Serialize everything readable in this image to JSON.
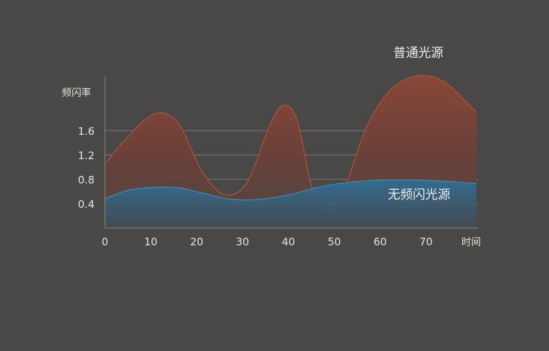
{
  "chart_data": {
    "type": "area",
    "title": "",
    "xlabel": "时间",
    "ylabel": "频闪率",
    "xlim": [
      0,
      81
    ],
    "ylim": [
      0,
      2.4
    ],
    "x_ticks": [
      0,
      10,
      20,
      30,
      40,
      50,
      60,
      70
    ],
    "y_ticks": [
      0.4,
      0.8,
      1.2,
      1.6
    ],
    "y_tick_labels": [
      "0.4",
      "0.8",
      "1.2",
      "1.6"
    ],
    "grid": {
      "horizontal": true,
      "vertical": false
    },
    "series": [
      {
        "name": "普通光源",
        "color": "#b5503c",
        "x": [
          0,
          5,
          11,
          16,
          21,
          26,
          31,
          36,
          39,
          42,
          45,
          48,
          50,
          53,
          57,
          62,
          68,
          74,
          81
        ],
        "values": [
          1.05,
          1.5,
          1.88,
          1.72,
          0.95,
          0.55,
          0.75,
          1.7,
          2.02,
          1.75,
          0.7,
          0.33,
          0.33,
          0.8,
          1.65,
          2.25,
          2.5,
          2.4,
          1.9
        ]
      },
      {
        "name": "无频闪光源",
        "color": "#2f8fc9",
        "x": [
          0,
          5,
          11,
          16,
          21,
          26,
          31,
          36,
          41,
          46,
          51,
          56,
          61,
          66,
          71,
          76,
          81
        ],
        "values": [
          0.48,
          0.62,
          0.67,
          0.66,
          0.58,
          0.49,
          0.46,
          0.49,
          0.56,
          0.66,
          0.73,
          0.77,
          0.79,
          0.79,
          0.78,
          0.76,
          0.73
        ]
      }
    ]
  }
}
